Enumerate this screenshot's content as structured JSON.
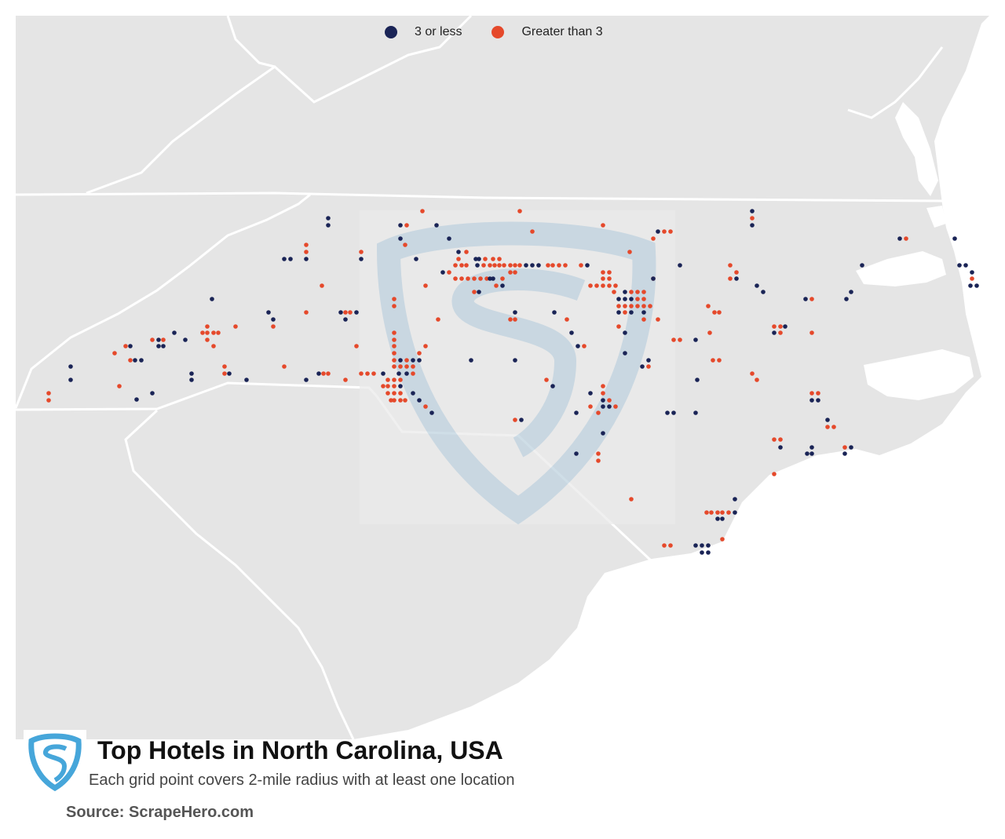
{
  "title": "Top Hotels in North Carolina, USA",
  "subtitle": "Each grid point covers 2-mile radius with at least one location",
  "source": "Source: ScrapeHero.com",
  "legend": [
    {
      "label": "3 or less",
      "color": "#1a2456"
    },
    {
      "label": "Greater than 3",
      "color": "#e5492b"
    }
  ],
  "colors": {
    "land": "#e5e5e5",
    "water": "#ffffff",
    "border": "#ffffff",
    "watermark": "#9cbfd4",
    "logo": "#46a6da"
  },
  "icons": [
    "scrapehero-logo-icon",
    "scrapehero-watermark-icon"
  ]
}
